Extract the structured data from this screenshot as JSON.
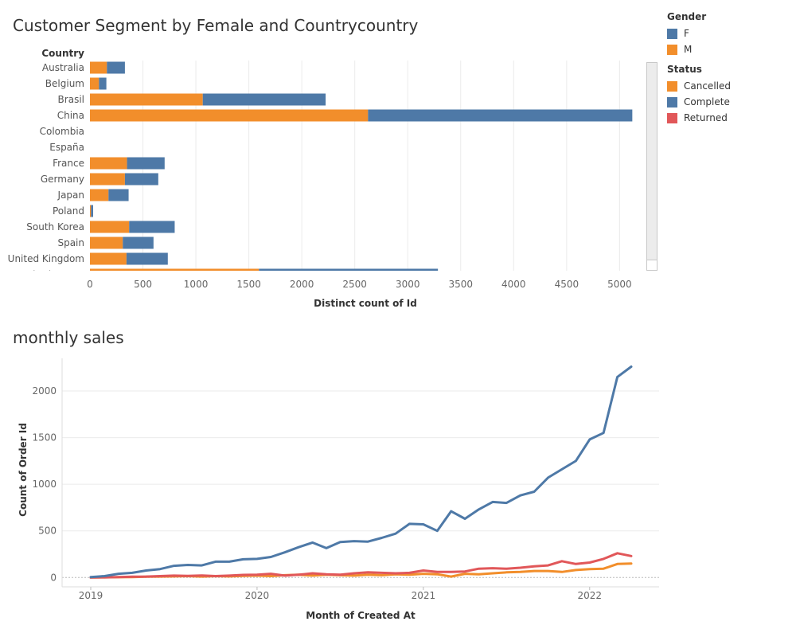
{
  "colors": {
    "orange": "#F28E2B",
    "blue": "#4E79A7",
    "red": "#E15759",
    "grid": "#EBEBEB",
    "axis_text": "#666666"
  },
  "chart_data": [
    {
      "type": "bar",
      "stacked": true,
      "orientation": "horizontal",
      "title": "Customer Segment by Female and Countrycountry",
      "ycategory_label": "Country",
      "xlabel": "Distinct count of Id",
      "xlim": [
        0,
        5200
      ],
      "xticks": [
        0,
        500,
        1000,
        1500,
        2000,
        2500,
        3000,
        3500,
        4000,
        4500,
        5000
      ],
      "categories": [
        "Australia",
        "Belgium",
        "Brasil",
        "China",
        "Colombia",
        "España",
        "France",
        "Germany",
        "Japan",
        "Poland",
        "South Korea",
        "Spain",
        "United Kingdom",
        "United States"
      ],
      "series": [
        {
          "name": "M",
          "color": "#F28E2B",
          "values": [
            160,
            85,
            1065,
            2625,
            0,
            0,
            350,
            330,
            175,
            10,
            370,
            310,
            345,
            1595
          ]
        },
        {
          "name": "F",
          "color": "#4E79A7",
          "values": [
            170,
            70,
            1160,
            2495,
            0,
            0,
            355,
            315,
            190,
            20,
            430,
            290,
            390,
            1690
          ]
        }
      ],
      "grid": true
    },
    {
      "type": "line",
      "title": "monthly sales",
      "xlabel": "Month of Created At",
      "ylabel": "Count of Order Id",
      "ylim": [
        -100,
        2350
      ],
      "yticks": [
        0,
        500,
        1000,
        1500,
        2000
      ],
      "xtick_labels": [
        "2019",
        "2020",
        "2021",
        "2022"
      ],
      "x": [
        "2019-01",
        "2019-02",
        "2019-03",
        "2019-04",
        "2019-05",
        "2019-06",
        "2019-07",
        "2019-08",
        "2019-09",
        "2019-10",
        "2019-11",
        "2019-12",
        "2020-01",
        "2020-02",
        "2020-03",
        "2020-04",
        "2020-05",
        "2020-06",
        "2020-07",
        "2020-08",
        "2020-09",
        "2020-10",
        "2020-11",
        "2020-12",
        "2021-01",
        "2021-02",
        "2021-03",
        "2021-04",
        "2021-05",
        "2021-06",
        "2021-07",
        "2021-08",
        "2021-09",
        "2021-10",
        "2021-11",
        "2021-12",
        "2022-01",
        "2022-02",
        "2022-03",
        "2022-04"
      ],
      "series": [
        {
          "name": "Complete",
          "color": "#4E79A7",
          "values": [
            5,
            15,
            40,
            50,
            75,
            90,
            125,
            135,
            130,
            170,
            170,
            195,
            200,
            220,
            270,
            325,
            375,
            315,
            380,
            390,
            385,
            425,
            470,
            575,
            570,
            500,
            710,
            630,
            730,
            810,
            800,
            880,
            920,
            1070,
            1160,
            1250,
            1480,
            1550,
            2150,
            2260
          ]
        },
        {
          "name": "Returned",
          "color": "#E15759",
          "values": [
            0,
            2,
            5,
            8,
            10,
            15,
            20,
            18,
            22,
            15,
            20,
            28,
            30,
            40,
            20,
            30,
            45,
            35,
            30,
            45,
            55,
            50,
            45,
            50,
            75,
            60,
            60,
            65,
            95,
            100,
            95,
            105,
            120,
            130,
            175,
            145,
            160,
            200,
            260,
            230
          ]
        },
        {
          "name": "Cancelled",
          "color": "#F28E2B",
          "values": [
            0,
            2,
            3,
            5,
            8,
            10,
            12,
            15,
            10,
            15,
            12,
            18,
            20,
            15,
            25,
            30,
            20,
            30,
            25,
            20,
            30,
            25,
            35,
            30,
            40,
            35,
            10,
            40,
            35,
            45,
            55,
            60,
            70,
            70,
            60,
            80,
            90,
            95,
            145,
            150
          ]
        }
      ],
      "grid": true
    }
  ],
  "legend": {
    "gender_title": "Gender",
    "gender_items": [
      {
        "label": "F",
        "color": "#4E79A7"
      },
      {
        "label": "M",
        "color": "#F28E2B"
      }
    ],
    "status_title": "Status",
    "status_items": [
      {
        "label": "Cancelled",
        "color": "#F28E2B"
      },
      {
        "label": "Complete",
        "color": "#4E79A7"
      },
      {
        "label": "Returned",
        "color": "#E15759"
      }
    ]
  }
}
